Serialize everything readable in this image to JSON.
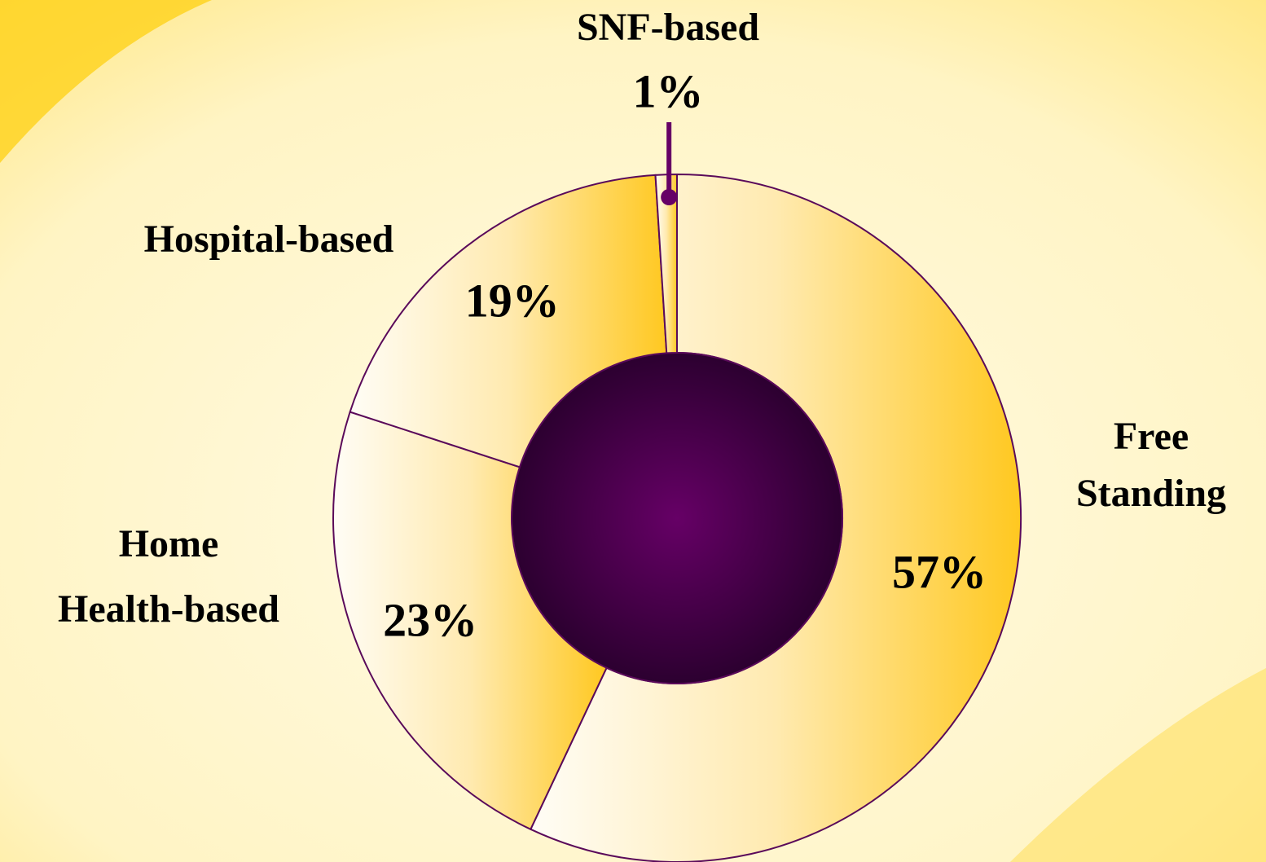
{
  "chart_data": {
    "type": "donut",
    "categories": [
      "Free Standing",
      "Home Health-based",
      "Hospital-based",
      "SNF-based"
    ],
    "values": [
      57,
      23,
      19,
      1
    ],
    "value_labels": [
      "57%",
      "23%",
      "19%",
      "1%"
    ],
    "color": "#ffc820"
  }
}
